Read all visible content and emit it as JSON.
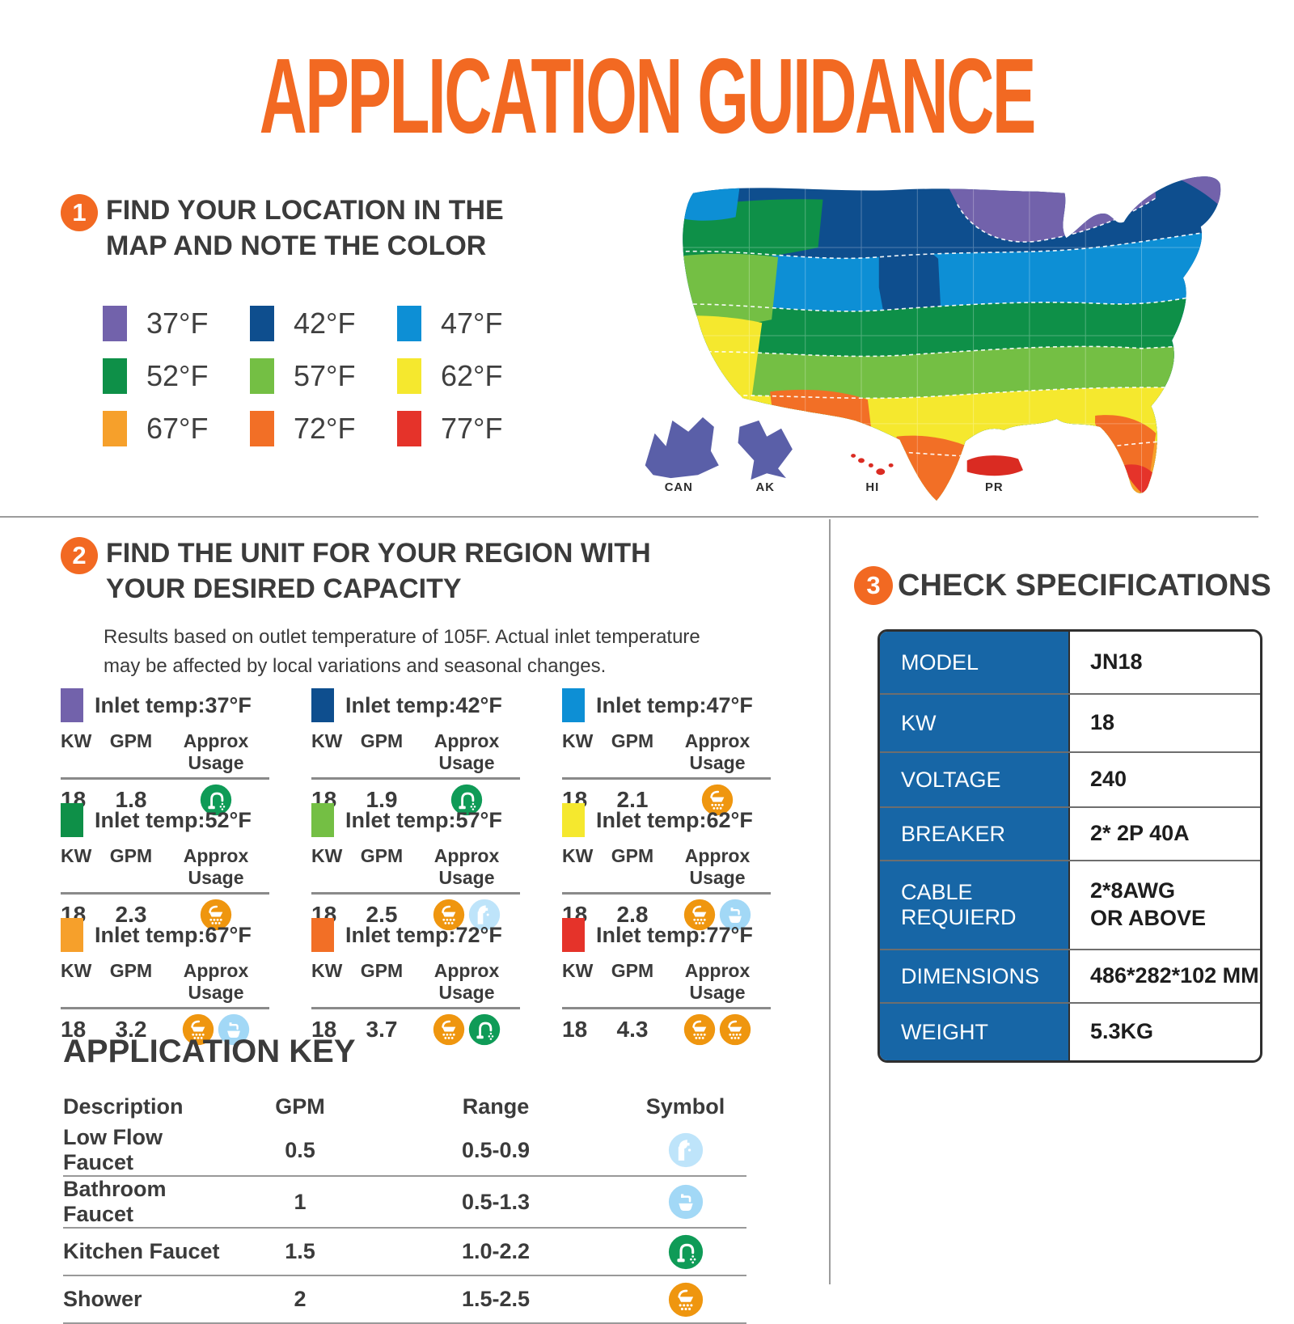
{
  "title": "APPLICATION GUIDANCE",
  "accent_color": "#F26922",
  "table_blue": "#1766A6",
  "step1": {
    "number": "1",
    "heading": "FIND YOUR LOCATION IN THE MAP AND NOTE THE COLOR",
    "legend": [
      {
        "label": "37°F",
        "color": "#7262AB"
      },
      {
        "label": "42°F",
        "color": "#0E4E8E"
      },
      {
        "label": "47°F",
        "color": "#0D8FD5"
      },
      {
        "label": "52°F",
        "color": "#0E9048"
      },
      {
        "label": "57°F",
        "color": "#74BF44"
      },
      {
        "label": "62°F",
        "color": "#F5E82E"
      },
      {
        "label": "67°F",
        "color": "#F6A02B"
      },
      {
        "label": "72°F",
        "color": "#F26F26"
      },
      {
        "label": "77°F",
        "color": "#E5332A"
      }
    ]
  },
  "map": {
    "insets": [
      {
        "label": "CAN",
        "color": "#5A5FA8"
      },
      {
        "label": "AK",
        "color": "#5A5FA8"
      },
      {
        "label": "HI",
        "color": "#DA2B22"
      },
      {
        "label": "PR",
        "color": "#DA2B22"
      }
    ]
  },
  "step2": {
    "number": "2",
    "heading": "FIND THE UNIT FOR YOUR REGION WITH YOUR DESIRED CAPACITY",
    "note": "Results based on outlet temperature of 105F. Actual inlet temperature may be affected by local variations and seasonal changes.",
    "columns": {
      "kw": "KW",
      "gpm": "GPM",
      "usage": "Approx Usage"
    },
    "units": [
      {
        "temp_label": "Inlet temp:37°F",
        "color": "#7262AB",
        "kw": "18",
        "gpm": "1.8",
        "usage": [
          "kitchen-faucet"
        ]
      },
      {
        "temp_label": "Inlet temp:42°F",
        "color": "#0E4E8E",
        "kw": "18",
        "gpm": "1.9",
        "usage": [
          "kitchen-faucet"
        ]
      },
      {
        "temp_label": "Inlet temp:47°F",
        "color": "#0D8FD5",
        "kw": "18",
        "gpm": "2.1",
        "usage": [
          "shower"
        ]
      },
      {
        "temp_label": "Inlet temp:52°F",
        "color": "#0E9048",
        "kw": "18",
        "gpm": "2.3",
        "usage": [
          "shower"
        ]
      },
      {
        "temp_label": "Inlet temp:57°F",
        "color": "#74BF44",
        "kw": "18",
        "gpm": "2.5",
        "usage": [
          "shower",
          "low-flow-faucet"
        ]
      },
      {
        "temp_label": "Inlet temp:62°F",
        "color": "#F5E82E",
        "kw": "18",
        "gpm": "2.8",
        "usage": [
          "shower",
          "bathroom-faucet"
        ]
      },
      {
        "temp_label": "Inlet temp:67°F",
        "color": "#F6A02B",
        "kw": "18",
        "gpm": "3.2",
        "usage": [
          "shower",
          "bathroom-faucet"
        ]
      },
      {
        "temp_label": "Inlet temp:72°F",
        "color": "#F26F26",
        "kw": "18",
        "gpm": "3.7",
        "usage": [
          "shower",
          "kitchen-faucet"
        ]
      },
      {
        "temp_label": "Inlet temp:77°F",
        "color": "#E5332A",
        "kw": "18",
        "gpm": "4.3",
        "usage": [
          "shower",
          "shower"
        ]
      }
    ]
  },
  "application_key": {
    "title": "APPLICATION KEY",
    "headers": [
      "Description",
      "GPM",
      "Range",
      "Symbol"
    ],
    "rows": [
      {
        "description": "Low Flow Faucet",
        "gpm": "0.5",
        "range": "0.5-0.9",
        "symbol": "low-flow-faucet"
      },
      {
        "description": "Bathroom Faucet",
        "gpm": "1",
        "range": "0.5-1.3",
        "symbol": "bathroom-faucet"
      },
      {
        "description": "Kitchen Faucet",
        "gpm": "1.5",
        "range": "1.0-2.2",
        "symbol": "kitchen-faucet"
      },
      {
        "description": "Shower",
        "gpm": "2",
        "range": "1.5-2.5",
        "symbol": "shower"
      }
    ]
  },
  "step3": {
    "number": "3",
    "heading": "CHECK SPECIFICATIONS",
    "specs": [
      {
        "label": "MODEL",
        "value": "JN18"
      },
      {
        "label": "KW",
        "value": "18"
      },
      {
        "label": "VOLTAGE",
        "value": "240"
      },
      {
        "label": "BREAKER",
        "value": "2* 2P 40A"
      },
      {
        "label": "CABLE REQUIERD",
        "value": "2*8AWG\nOR ABOVE"
      },
      {
        "label": "DIMENSIONS",
        "value": "486*282*102 MM"
      },
      {
        "label": "WEIGHT",
        "value": "5.3KG"
      }
    ]
  },
  "icons": {
    "shower": {
      "color": "#EF960F"
    },
    "kitchen-faucet": {
      "color": "#0F9B57"
    },
    "bathroom-faucet": {
      "color": "#A2D8F6"
    },
    "low-flow-faucet": {
      "color": "#BEE4FA"
    }
  }
}
